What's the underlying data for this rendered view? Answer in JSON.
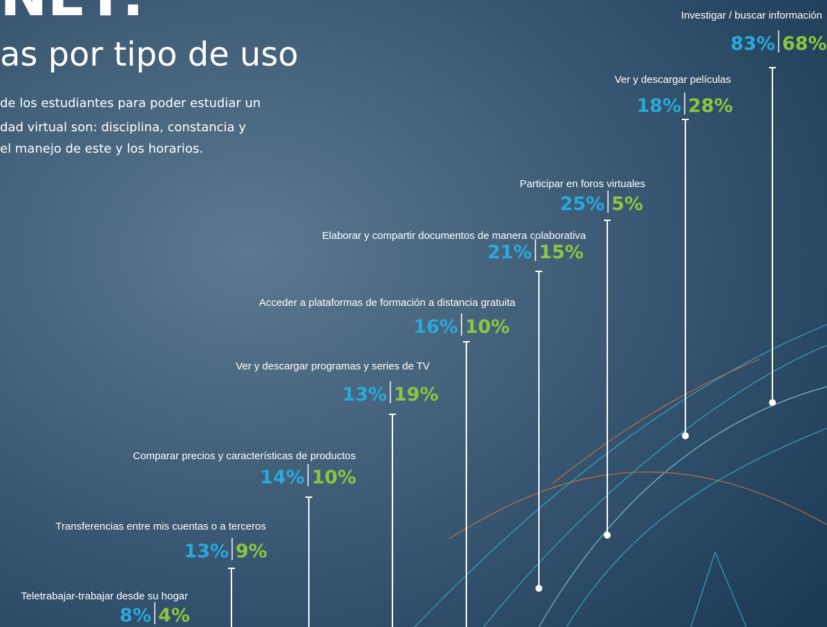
{
  "header": {
    "title": "NET:",
    "subtitle": "as por tipo de uso",
    "text": [
      "de los estudiantes para poder estudiar un",
      "dad virtual son: disciplina, constancia y",
      "el manejo de este y los horarios."
    ]
  },
  "items": [
    {
      "label": "Investigar  / buscar información",
      "first": "83%",
      "second": "68%"
    },
    {
      "label": "Ver y descargar películas",
      "first": "18%",
      "second": "28%"
    },
    {
      "label": "Participar en foros virtuales",
      "first": "25%",
      "second": "5%"
    },
    {
      "label": "Elaborar y compartir documentos de manera colaborativa",
      "first": "21%",
      "second": "15%"
    },
    {
      "label": "Acceder a plataformas de formación a distancia gratuita",
      "first": "16%",
      "second": "10%"
    },
    {
      "label": "Ver y descargar programas y series de TV",
      "first": "13%",
      "second": "19%"
    },
    {
      "label": "Comparar precios y características de productos",
      "first": "14%",
      "second": "10%"
    },
    {
      "label": "Transferencias entre mis cuentas o a terceros",
      "first": "13%",
      "second": "9%"
    },
    {
      "label": "Teletrabajar-trabajar desde su hogar",
      "first": "8%",
      "second": "4%"
    }
  ]
}
